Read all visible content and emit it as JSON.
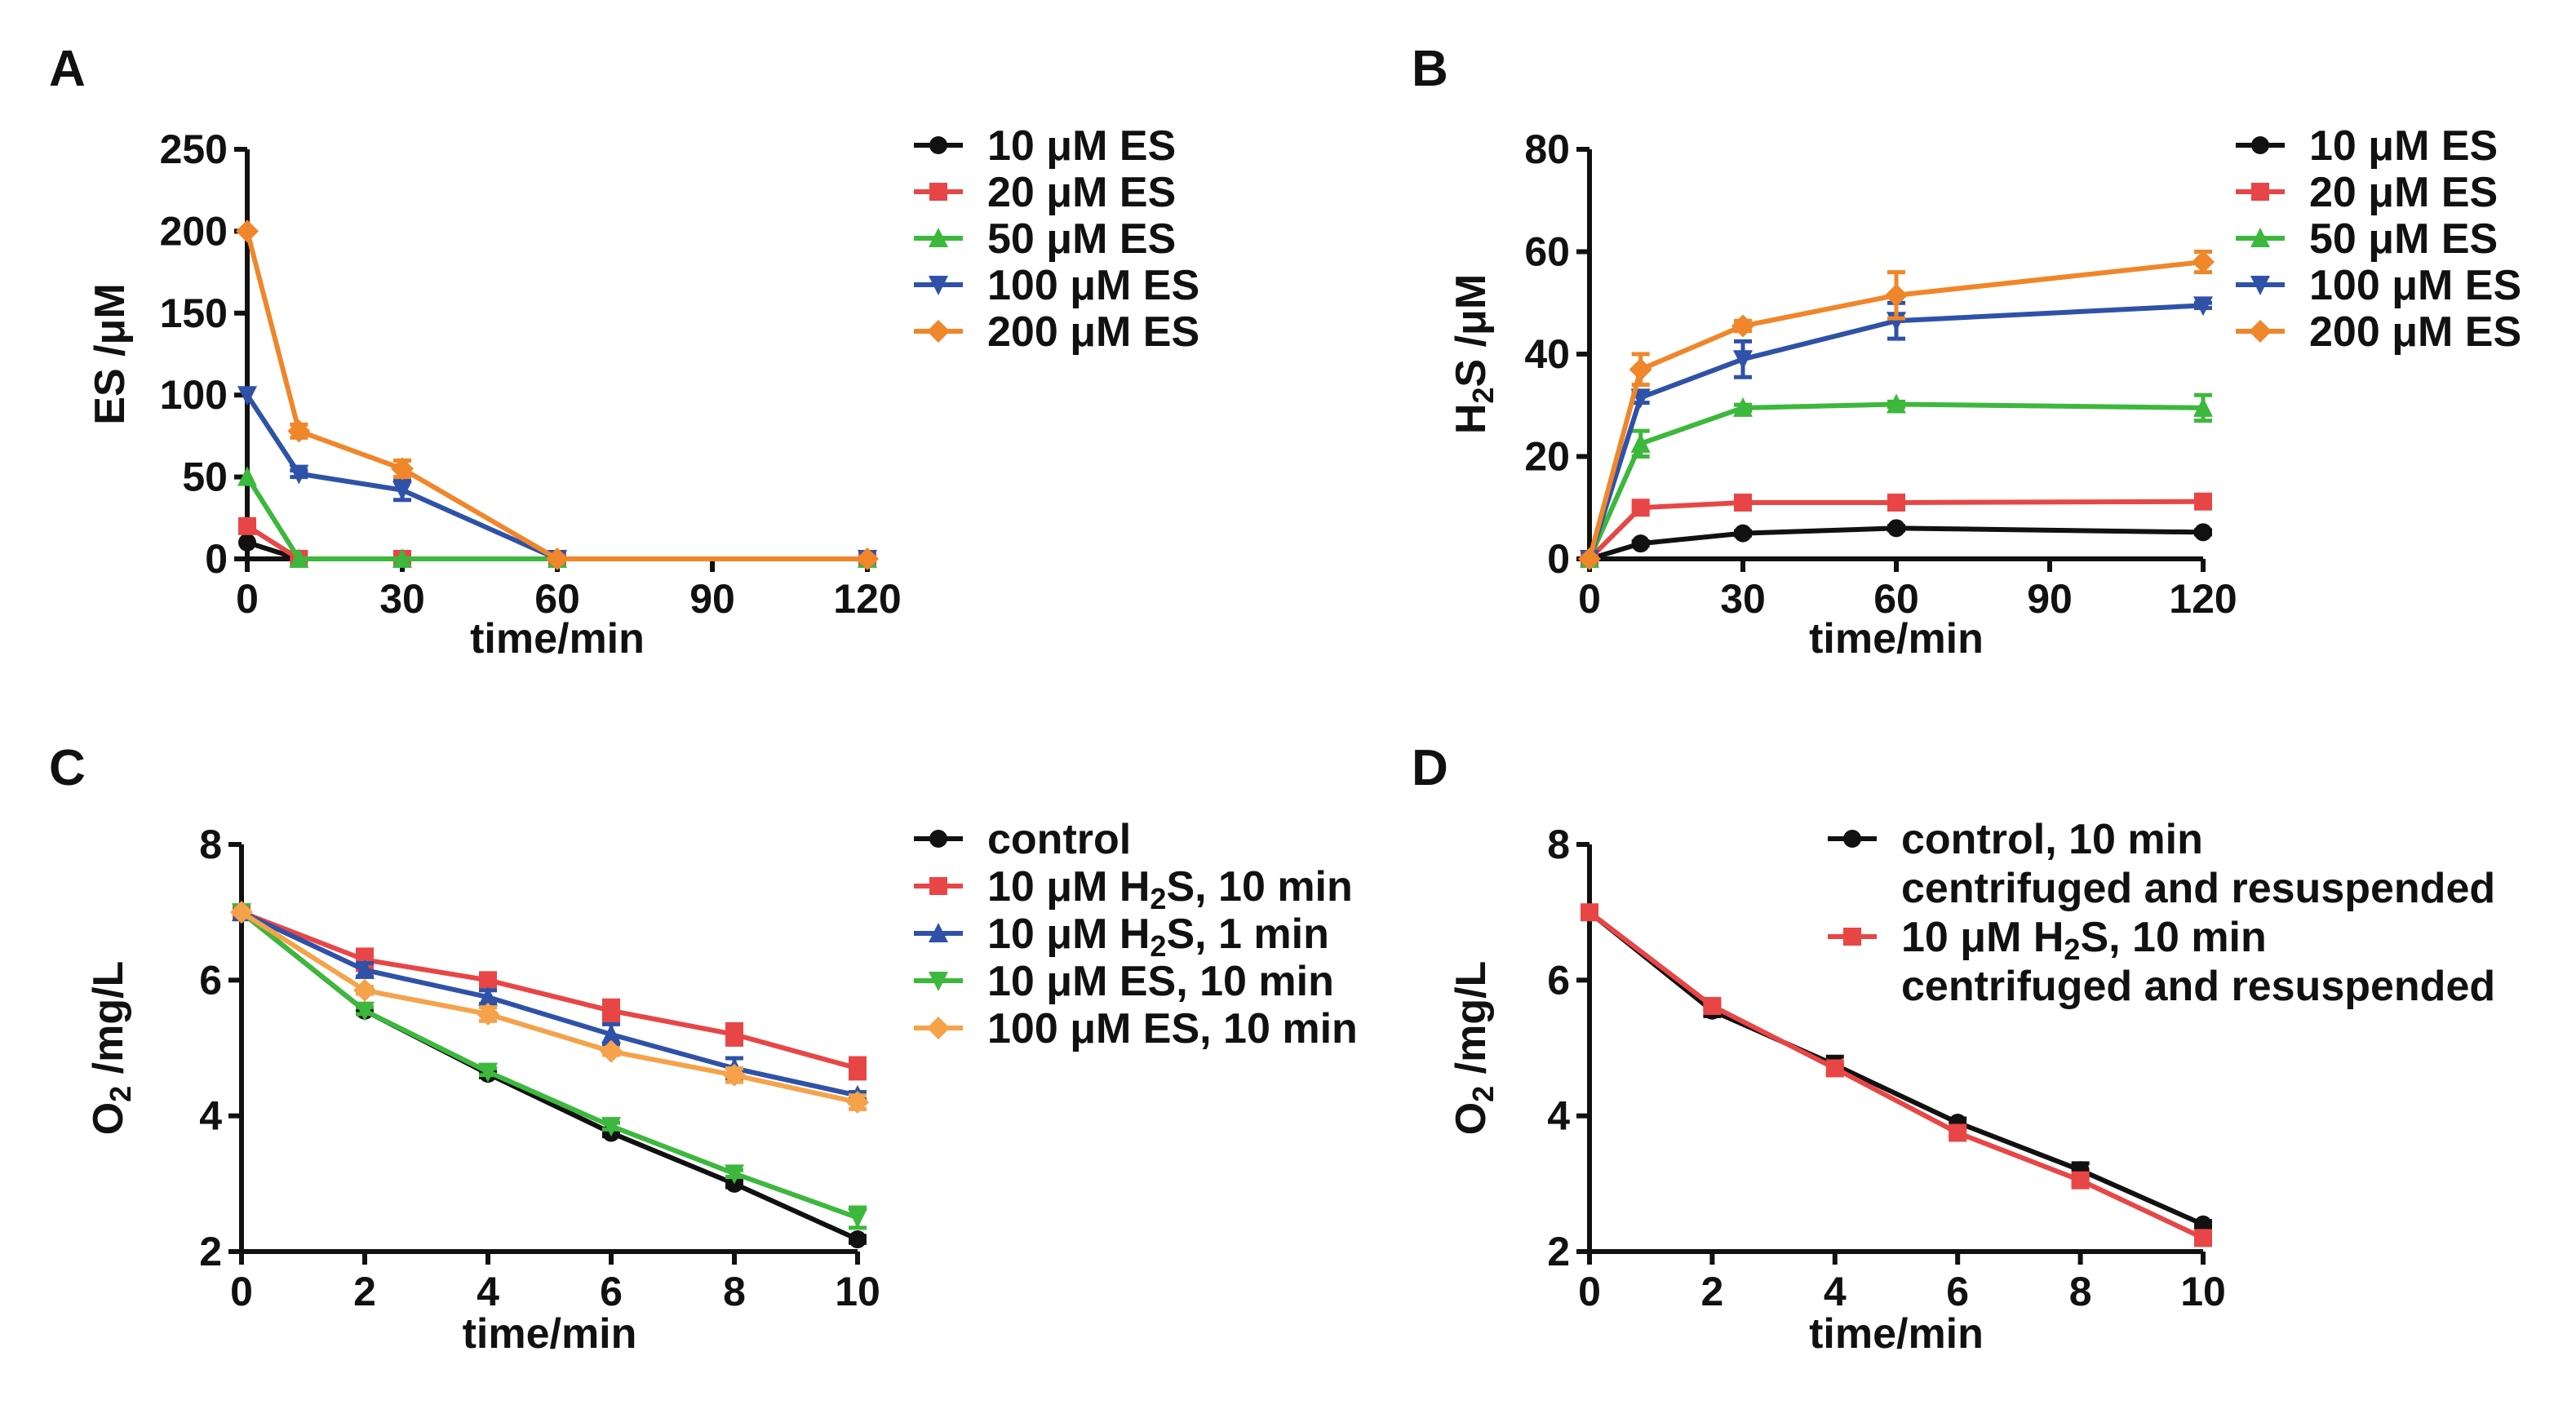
{
  "chart_data": [
    {
      "panel": "A",
      "type": "line",
      "xlabel": "time/min",
      "ylabel": "ES /μM",
      "xlim": [
        0,
        120
      ],
      "ylim": [
        0,
        250
      ],
      "xticks": [
        0,
        30,
        60,
        90,
        120
      ],
      "yticks": [
        0,
        50,
        100,
        150,
        200,
        250
      ],
      "legend_placement": "right",
      "series": [
        {
          "name": "10 μM ES",
          "color": "#111111",
          "marker": "circle",
          "x": [
            0,
            10,
            30,
            60,
            120
          ],
          "y": [
            10,
            0,
            0,
            0,
            0
          ],
          "err": [
            0,
            0,
            0,
            0,
            0
          ]
        },
        {
          "name": "20 μM ES",
          "color": "#e84646",
          "marker": "square",
          "x": [
            0,
            10,
            30,
            60,
            120
          ],
          "y": [
            20,
            0,
            0,
            0,
            0
          ],
          "err": [
            0,
            0,
            0,
            0,
            0
          ]
        },
        {
          "name": "50 μM ES",
          "color": "#3cb83c",
          "marker": "triangle-up",
          "x": [
            0,
            10,
            30,
            60,
            120
          ],
          "y": [
            50,
            0,
            0,
            0,
            0
          ],
          "err": [
            0,
            0,
            0,
            0,
            0
          ]
        },
        {
          "name": "100 μM ES",
          "color": "#2f52a8",
          "marker": "triangle-down",
          "x": [
            0,
            10,
            30,
            60,
            120
          ],
          "y": [
            100,
            52,
            42,
            0,
            0
          ],
          "err": [
            0,
            2,
            6,
            0,
            0
          ]
        },
        {
          "name": "200 μM ES",
          "color": "#f0862a",
          "marker": "diamond",
          "x": [
            0,
            10,
            30,
            60,
            120
          ],
          "y": [
            200,
            78,
            55,
            0,
            0
          ],
          "err": [
            0,
            4,
            5,
            0,
            0
          ]
        }
      ]
    },
    {
      "panel": "B",
      "type": "line",
      "xlabel": "time/min",
      "ylabel_main": "H",
      "ylabel_sub": "2",
      "ylabel_rest": "S /μM",
      "xlim": [
        0,
        120
      ],
      "ylim": [
        0,
        80
      ],
      "xticks": [
        0,
        30,
        60,
        90,
        120
      ],
      "yticks": [
        0,
        20,
        40,
        60,
        80
      ],
      "legend_placement": "right",
      "series": [
        {
          "name": "10 μM ES",
          "color": "#111111",
          "marker": "circle",
          "x": [
            0,
            10,
            30,
            60,
            120
          ],
          "y": [
            0,
            3,
            5,
            6,
            5.2
          ],
          "err": [
            0,
            0.4,
            0.4,
            0.4,
            0.4
          ]
        },
        {
          "name": "20 μM ES",
          "color": "#e84646",
          "marker": "square",
          "x": [
            0,
            10,
            30,
            60,
            120
          ],
          "y": [
            0,
            10,
            11,
            11,
            11.2
          ],
          "err": [
            0,
            0.5,
            0.5,
            0.5,
            0.5
          ]
        },
        {
          "name": "50 μM ES",
          "color": "#3cb83c",
          "marker": "triangle-up",
          "x": [
            0,
            10,
            30,
            60,
            120
          ],
          "y": [
            0,
            22.5,
            29.5,
            30.2,
            29.5
          ],
          "err": [
            0,
            2.5,
            0.6,
            0.5,
            2.5
          ]
        },
        {
          "name": "100 μM ES",
          "color": "#2f52a8",
          "marker": "triangle-down",
          "x": [
            0,
            10,
            30,
            60,
            120
          ],
          "y": [
            0,
            31.5,
            39,
            46.5,
            49.5
          ],
          "err": [
            0,
            1,
            3.5,
            3.5,
            0.5
          ]
        },
        {
          "name": "200 μM ES",
          "color": "#f0862a",
          "marker": "diamond",
          "x": [
            0,
            10,
            30,
            60,
            120
          ],
          "y": [
            0,
            37,
            45.5,
            51.5,
            58
          ],
          "err": [
            0,
            3,
            1,
            4.5,
            2
          ]
        }
      ]
    },
    {
      "panel": "C",
      "type": "line",
      "xlabel": "time/min",
      "ylabel_main": "O",
      "ylabel_sub": "2",
      "ylabel_rest": " /mg/L",
      "xlim": [
        0,
        10
      ],
      "ylim": [
        2,
        8
      ],
      "xticks": [
        0,
        2,
        4,
        6,
        8,
        10
      ],
      "yticks": [
        2,
        4,
        6,
        8
      ],
      "legend_placement": "right",
      "series": [
        {
          "name": "control",
          "color": "#111111",
          "marker": "circle",
          "x": [
            0,
            2,
            4,
            6,
            8,
            10
          ],
          "y": [
            7,
            5.55,
            4.62,
            3.75,
            3.0,
            2.18
          ],
          "err": [
            0,
            0.05,
            0.05,
            0.05,
            0.05,
            0.05
          ]
        },
        {
          "name": "10 μM H2S, 10 min",
          "color": "#e84646",
          "marker": "square",
          "x": [
            0,
            2,
            4,
            6,
            8,
            10
          ],
          "y": [
            7,
            6.3,
            6.0,
            5.55,
            5.2,
            4.7
          ],
          "err": [
            0,
            0.15,
            0.1,
            0.15,
            0.15,
            0.15
          ]
        },
        {
          "name": "10 μM H2S, 1 min",
          "color": "#2f52a8",
          "marker": "triangle-up",
          "x": [
            0,
            2,
            4,
            6,
            8,
            10
          ],
          "y": [
            7,
            6.15,
            5.75,
            5.2,
            4.7,
            4.3
          ],
          "err": [
            0,
            0.1,
            0.1,
            0.15,
            0.15,
            0.05
          ]
        },
        {
          "name": "10 μM ES, 10 min",
          "color": "#3cb83c",
          "marker": "triangle-down",
          "x": [
            0,
            2,
            4,
            6,
            8,
            10
          ],
          "y": [
            7,
            5.55,
            4.65,
            3.85,
            3.15,
            2.5
          ],
          "err": [
            0,
            0.05,
            0.05,
            0.05,
            0.05,
            0.15
          ]
        },
        {
          "name": "100 μM ES, 10 min",
          "color": "#f5a24a",
          "marker": "diamond",
          "x": [
            0,
            2,
            4,
            6,
            8,
            10
          ],
          "y": [
            7,
            5.85,
            5.5,
            4.95,
            4.6,
            4.2
          ],
          "err": [
            0,
            0.05,
            0.1,
            0.05,
            0.1,
            0.1
          ]
        }
      ]
    },
    {
      "panel": "D",
      "type": "line",
      "xlabel": "time/min",
      "ylabel_main": "O",
      "ylabel_sub": "2",
      "ylabel_rest": " /mg/L",
      "xlim": [
        0,
        10
      ],
      "ylim": [
        2,
        8
      ],
      "xticks": [
        0,
        2,
        4,
        6,
        8,
        10
      ],
      "yticks": [
        2,
        4,
        6,
        8
      ],
      "legend_placement": "top-right",
      "series": [
        {
          "name": "control, 10 min",
          "name_line2": "centrifuged and resuspended",
          "color": "#111111",
          "marker": "circle",
          "x": [
            0,
            2,
            4,
            6,
            8,
            10
          ],
          "y": [
            7,
            5.55,
            4.75,
            3.9,
            3.2,
            2.4
          ],
          "err": [
            0,
            0.08,
            0.12,
            0.06,
            0.1,
            0.05
          ]
        },
        {
          "name": "10 μM H2S, 10 min",
          "name_line2": "centrifuged and resuspended",
          "color": "#e84646",
          "marker": "square",
          "x": [
            0,
            2,
            4,
            6,
            8,
            10
          ],
          "y": [
            7,
            5.62,
            4.7,
            3.75,
            3.05,
            2.2
          ],
          "err": [
            0,
            0.05,
            0.05,
            0.05,
            0.05,
            0.08
          ]
        }
      ]
    }
  ]
}
